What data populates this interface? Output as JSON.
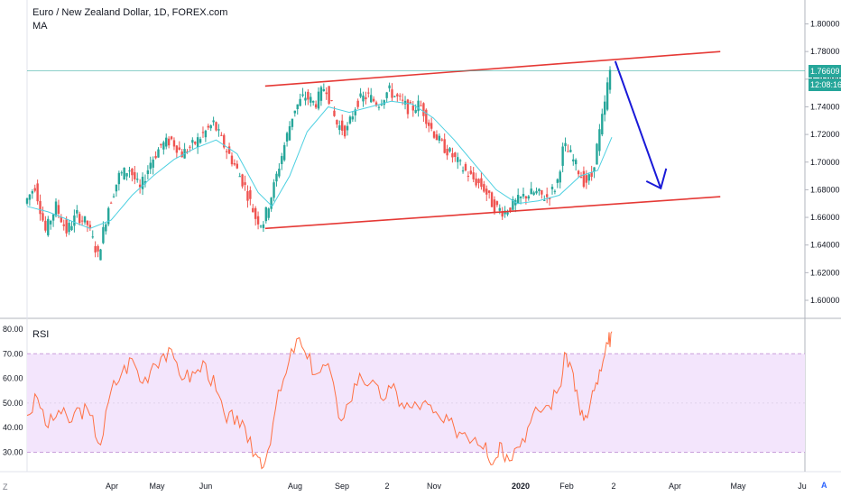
{
  "header": {
    "title": "Euro / New Zealand Dollar, 1D, FOREX.com",
    "indicator_ma": "MA",
    "indicator_rsi": "RSI"
  },
  "price_tags": {
    "last_price": "1.76609",
    "countdown": "12:08:16"
  },
  "corner_labels": {
    "left": "Z",
    "right": "A"
  },
  "colors": {
    "up": "#26a69a",
    "down": "#ef5350",
    "ma": "#4dd0e1",
    "channel": "#e53935",
    "arrow": "#1a1ad8",
    "rsi_line": "#ff7043",
    "rsi_band": "#f3e5fc"
  },
  "chart_data": [
    {
      "type": "candlestick",
      "title": "Euro / New Zealand Dollar, 1D, FOREX.com",
      "y_ticks": [
        "1.80000",
        "1.78000",
        "1.76000",
        "1.74000",
        "1.72000",
        "1.70000",
        "1.68000",
        "1.66000",
        "1.64000",
        "1.62000",
        "1.60000"
      ],
      "ylim": [
        1.595,
        1.805
      ],
      "x_ticks": [
        "Apr",
        "May",
        "Jun",
        "Aug",
        "Sep",
        "2",
        "Nov",
        "2020",
        "Feb",
        "2",
        "Apr",
        "May",
        "Ju"
      ],
      "last_price": 1.76609,
      "series": [
        {
          "name": "EURNZD",
          "points": [
            [
              0,
              1.67
            ],
            [
              6,
              1.683
            ],
            [
              12,
              1.65
            ],
            [
              18,
              1.668
            ],
            [
              24,
              1.65
            ],
            [
              30,
              1.662
            ],
            [
              36,
              1.655
            ],
            [
              42,
              1.632
            ],
            [
              48,
              1.668
            ],
            [
              54,
              1.69
            ],
            [
              60,
              1.695
            ],
            [
              66,
              1.68
            ],
            [
              72,
              1.7
            ],
            [
              78,
              1.712
            ],
            [
              84,
              1.716
            ],
            [
              90,
              1.706
            ],
            [
              96,
              1.712
            ],
            [
              102,
              1.72
            ],
            [
              108,
              1.728
            ],
            [
              114,
              1.712
            ],
            [
              120,
              1.698
            ],
            [
              126,
              1.682
            ],
            [
              132,
              1.66
            ],
            [
              136,
              1.655
            ],
            [
              142,
              1.68
            ],
            [
              148,
              1.71
            ],
            [
              154,
              1.738
            ],
            [
              160,
              1.748
            ],
            [
              166,
              1.742
            ],
            [
              172,
              1.756
            ],
            [
              178,
              1.728
            ],
            [
              184,
              1.722
            ],
            [
              190,
              1.744
            ],
            [
              196,
              1.748
            ],
            [
              202,
              1.742
            ],
            [
              208,
              1.752
            ],
            [
              214,
              1.745
            ],
            [
              220,
              1.738
            ],
            [
              226,
              1.742
            ],
            [
              232,
              1.725
            ],
            [
              238,
              1.713
            ],
            [
              244,
              1.705
            ],
            [
              250,
              1.696
            ],
            [
              256,
              1.688
            ],
            [
              262,
              1.682
            ],
            [
              268,
              1.668
            ],
            [
              274,
              1.664
            ],
            [
              280,
              1.67
            ],
            [
              286,
              1.676
            ],
            [
              292,
              1.678
            ],
            [
              298,
              1.674
            ],
            [
              304,
              1.683
            ],
            [
              308,
              1.712
            ],
            [
              312,
              1.705
            ],
            [
              316,
              1.695
            ],
            [
              320,
              1.685
            ],
            [
              324,
              1.69
            ],
            [
              328,
              1.718
            ],
            [
              332,
              1.745
            ],
            [
              334,
              1.766
            ]
          ]
        },
        {
          "name": "MA",
          "points": [
            [
              0,
              1.668
            ],
            [
              12,
              1.664
            ],
            [
              24,
              1.658
            ],
            [
              36,
              1.652
            ],
            [
              48,
              1.658
            ],
            [
              60,
              1.676
            ],
            [
              72,
              1.69
            ],
            [
              84,
              1.702
            ],
            [
              96,
              1.71
            ],
            [
              108,
              1.716
            ],
            [
              120,
              1.706
            ],
            [
              132,
              1.678
            ],
            [
              140,
              1.668
            ],
            [
              150,
              1.69
            ],
            [
              160,
              1.722
            ],
            [
              172,
              1.74
            ],
            [
              184,
              1.736
            ],
            [
              196,
              1.74
            ],
            [
              208,
              1.744
            ],
            [
              220,
              1.742
            ],
            [
              232,
              1.732
            ],
            [
              244,
              1.716
            ],
            [
              256,
              1.698
            ],
            [
              268,
              1.68
            ],
            [
              280,
              1.67
            ],
            [
              292,
              1.672
            ],
            [
              304,
              1.676
            ],
            [
              316,
              1.69
            ],
            [
              326,
              1.694
            ],
            [
              334,
              1.718
            ]
          ]
        }
      ],
      "annotations": [
        {
          "type": "channel-upper",
          "from": [
            136,
            1.755
          ],
          "to": [
            396,
            1.78
          ]
        },
        {
          "type": "channel-lower",
          "from": [
            136,
            1.652
          ],
          "to": [
            396,
            1.675
          ]
        },
        {
          "type": "arrow",
          "from": [
            336,
            1.773
          ],
          "to": [
            362,
            1.681
          ]
        },
        {
          "type": "horizontal-price-line",
          "value": 1.76609
        }
      ]
    },
    {
      "type": "line",
      "title": "RSI",
      "y_ticks": [
        "80.00",
        "70.00",
        "60.00",
        "50.00",
        "40.00",
        "30.00"
      ],
      "ylim": [
        22,
        82
      ],
      "band": [
        30,
        70
      ],
      "series": [
        {
          "name": "RSI",
          "points": [
            [
              0,
              45
            ],
            [
              6,
              52
            ],
            [
              12,
              40
            ],
            [
              18,
              47
            ],
            [
              24,
              42
            ],
            [
              30,
              48
            ],
            [
              36,
              45
            ],
            [
              42,
              33
            ],
            [
              48,
              55
            ],
            [
              54,
              62
            ],
            [
              60,
              68
            ],
            [
              66,
              58
            ],
            [
              72,
              66
            ],
            [
              78,
              70
            ],
            [
              84,
              68
            ],
            [
              90,
              60
            ],
            [
              96,
              62
            ],
            [
              102,
              66
            ],
            [
              108,
              55
            ],
            [
              114,
              42
            ],
            [
              120,
              45
            ],
            [
              126,
              34
            ],
            [
              132,
              28
            ],
            [
              136,
              26
            ],
            [
              142,
              48
            ],
            [
              148,
              62
            ],
            [
              154,
              76
            ],
            [
              160,
              68
            ],
            [
              166,
              62
            ],
            [
              172,
              66
            ],
            [
              178,
              44
            ],
            [
              184,
              50
            ],
            [
              190,
              62
            ],
            [
              196,
              58
            ],
            [
              202,
              52
            ],
            [
              208,
              56
            ],
            [
              214,
              50
            ],
            [
              220,
              48
            ],
            [
              226,
              50
            ],
            [
              232,
              46
            ],
            [
              238,
              42
            ],
            [
              244,
              40
            ],
            [
              250,
              38
            ],
            [
              256,
              36
            ],
            [
              262,
              34
            ],
            [
              266,
              25
            ],
            [
              270,
              34
            ],
            [
              274,
              29
            ],
            [
              280,
              32
            ],
            [
              286,
              40
            ],
            [
              292,
              47
            ],
            [
              298,
              49
            ],
            [
              304,
              56
            ],
            [
              308,
              70
            ],
            [
              312,
              62
            ],
            [
              316,
              45
            ],
            [
              320,
              44
            ],
            [
              324,
              55
            ],
            [
              328,
              63
            ],
            [
              332,
              74
            ],
            [
              334,
              79
            ]
          ]
        }
      ]
    }
  ]
}
